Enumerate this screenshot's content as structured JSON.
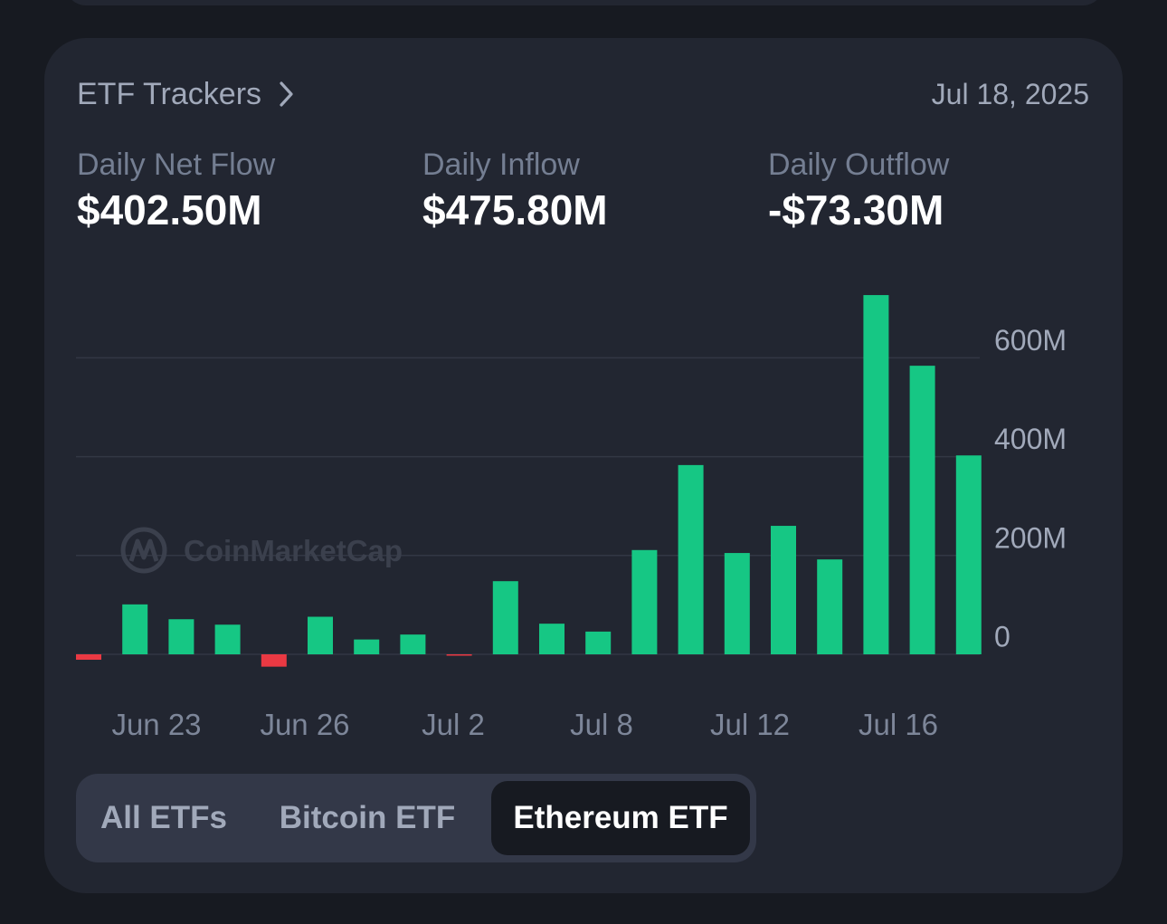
{
  "header": {
    "title": "ETF Trackers",
    "date": "Jul 18, 2025"
  },
  "metrics": [
    {
      "label": "Daily Net Flow",
      "value": "$402.50M"
    },
    {
      "label": "Daily Inflow",
      "value": "$475.80M"
    },
    {
      "label": "Daily Outflow",
      "value": "-$73.30M"
    }
  ],
  "colors": {
    "inflow_bar": "#16c784",
    "outflow_bar": "#ea3943",
    "watermark": "#3b404d"
  },
  "watermark": "CoinMarketCap",
  "tabs": [
    {
      "label": "All ETFs",
      "active": false
    },
    {
      "label": "Bitcoin ETF",
      "active": false
    },
    {
      "label": "Ethereum ETF",
      "active": true
    }
  ],
  "chart_data": {
    "type": "bar",
    "title": "",
    "xlabel": "",
    "ylabel": "",
    "y_axis_position": "right",
    "y_ticks": [
      "0",
      "200M",
      "400M",
      "600M"
    ],
    "ylim": [
      -50,
      730
    ],
    "x_tick_labels": [
      "Jun 23",
      "Jun 26",
      "Jul 2",
      "Jul 8",
      "Jul 12",
      "Jul 16"
    ],
    "grid": true,
    "series": [
      {
        "values": [
          -11,
          101,
          71,
          60,
          -25,
          76,
          30,
          40,
          -2,
          148,
          62,
          46,
          211,
          383,
          205,
          260,
          192,
          727,
          584,
          402.5
        ]
      }
    ]
  }
}
